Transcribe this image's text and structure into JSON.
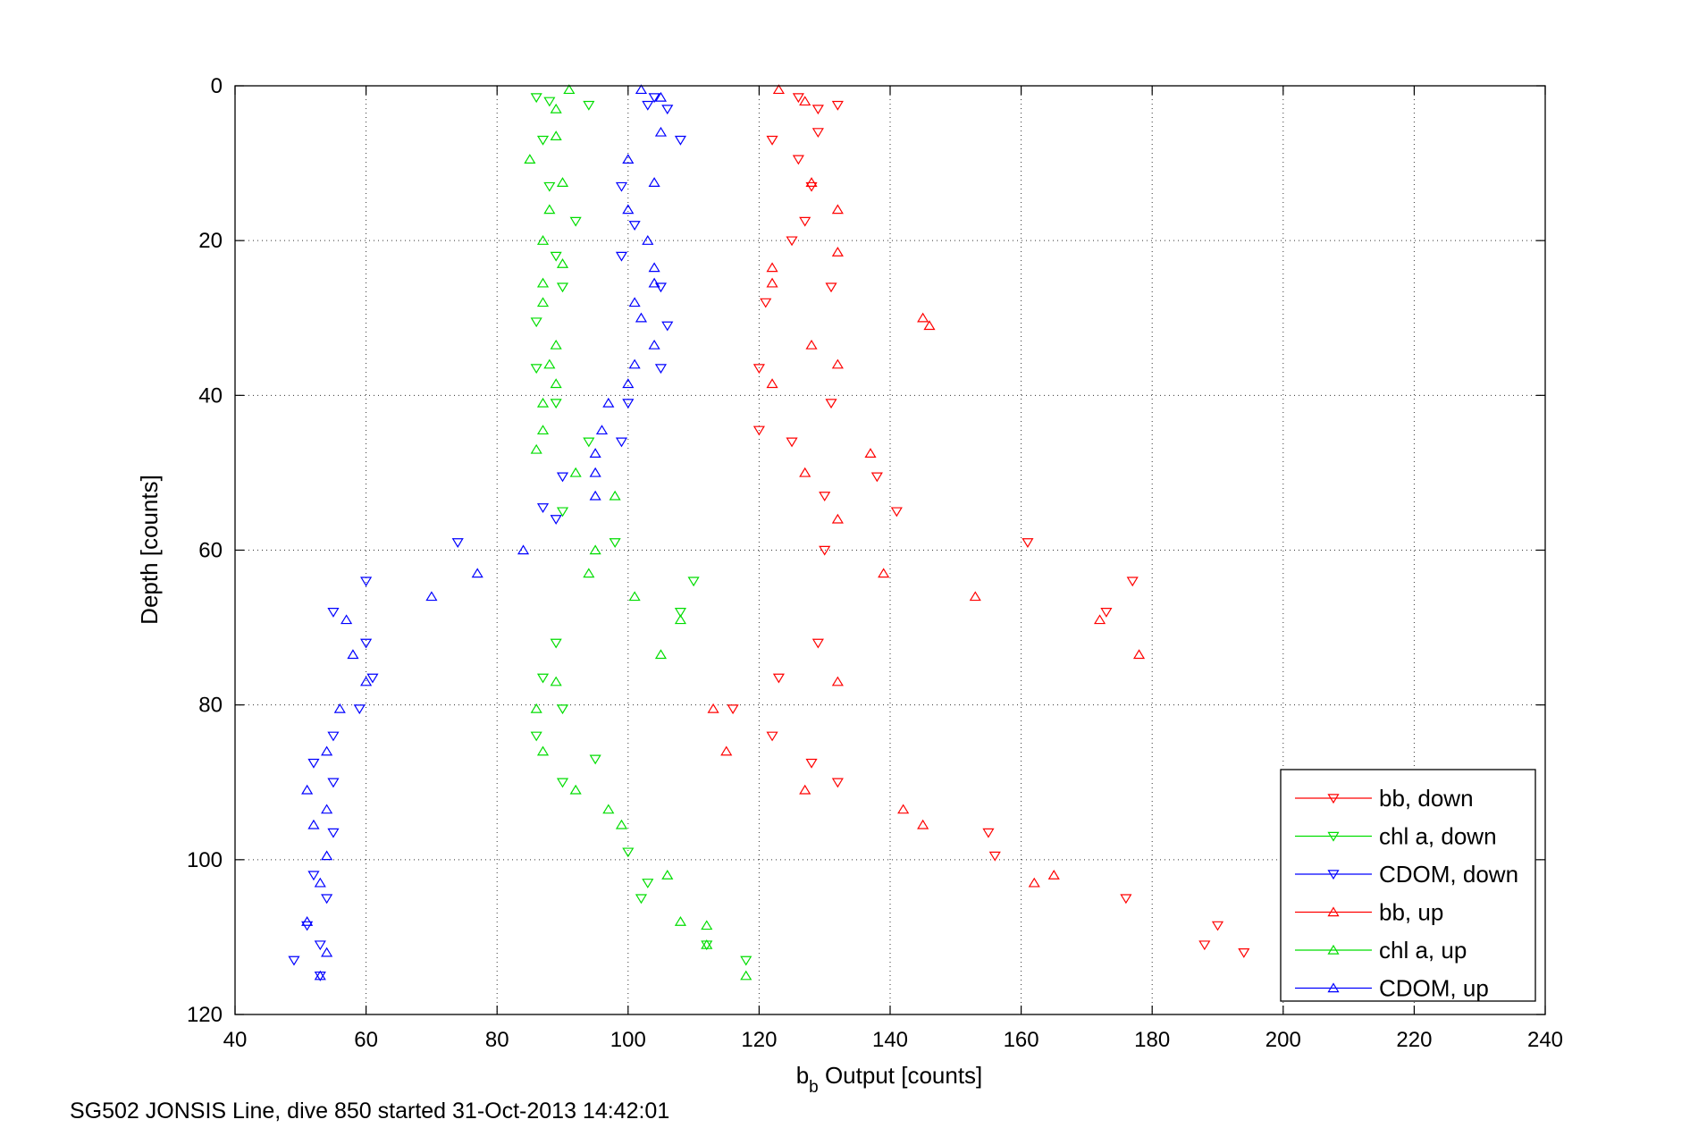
{
  "caption": "SG502 JONSIS Line, dive 850 started 31-Oct-2013 14:42:01",
  "chart_data": {
    "type": "scatter",
    "title": "",
    "xlabel_main": "b",
    "xlabel_sub": "b",
    "xlabel_rest": " Output [counts]",
    "ylabel": "Depth [counts]",
    "xlim": [
      40,
      240
    ],
    "ylim": [
      0,
      120
    ],
    "y_reversed": true,
    "grid": true,
    "grid_style": "dotted",
    "legend_position": "bottom-right",
    "xticks": [
      "40",
      "60",
      "80",
      "100",
      "120",
      "140",
      "160",
      "180",
      "200",
      "220",
      "240"
    ],
    "yticks": [
      "0",
      "20",
      "40",
      "60",
      "80",
      "100",
      "120"
    ],
    "series": [
      {
        "name": "bb, down",
        "color": "#ff0000",
        "marker": "triangle-down",
        "points": [
          [
            126,
            1.5
          ],
          [
            129,
            3
          ],
          [
            132,
            2.5
          ],
          [
            122,
            7
          ],
          [
            129,
            6
          ],
          [
            126,
            9.5
          ],
          [
            128,
            13
          ],
          [
            127,
            17.5
          ],
          [
            125,
            20
          ],
          [
            131,
            26
          ],
          [
            121,
            28
          ],
          [
            120,
            36.5
          ],
          [
            131,
            41
          ],
          [
            120,
            44.5
          ],
          [
            125,
            46
          ],
          [
            138,
            50.5
          ],
          [
            130,
            53
          ],
          [
            141,
            55
          ],
          [
            161,
            59
          ],
          [
            130,
            60
          ],
          [
            177,
            64
          ],
          [
            173,
            68
          ],
          [
            129,
            72
          ],
          [
            123,
            76.5
          ],
          [
            116,
            80.5
          ],
          [
            122,
            84
          ],
          [
            128,
            87.5
          ],
          [
            132,
            90
          ],
          [
            155,
            96.5
          ],
          [
            156,
            99.5
          ],
          [
            176,
            105
          ],
          [
            190,
            108.5
          ],
          [
            188,
            111
          ],
          [
            194,
            112
          ]
        ]
      },
      {
        "name": "chl a, down",
        "color": "#00dd00",
        "marker": "triangle-down",
        "points": [
          [
            86,
            1.5
          ],
          [
            88,
            2
          ],
          [
            94,
            2.5
          ],
          [
            87,
            7
          ],
          [
            88,
            13
          ],
          [
            92,
            17.5
          ],
          [
            89,
            22
          ],
          [
            90,
            26
          ],
          [
            86,
            30.5
          ],
          [
            86,
            36.5
          ],
          [
            89,
            41
          ],
          [
            94,
            46
          ],
          [
            90,
            55
          ],
          [
            98,
            59
          ],
          [
            110,
            64
          ],
          [
            108,
            68
          ],
          [
            89,
            72
          ],
          [
            87,
            76.5
          ],
          [
            90,
            80.5
          ],
          [
            86,
            84
          ],
          [
            90,
            90
          ],
          [
            100,
            99
          ],
          [
            103,
            103
          ],
          [
            102,
            105
          ],
          [
            112,
            111
          ],
          [
            118,
            113
          ],
          [
            95,
            87
          ]
        ]
      },
      {
        "name": "CDOM, down",
        "color": "#0000ff",
        "marker": "triangle-down",
        "points": [
          [
            103,
            2.5
          ],
          [
            104,
            1.5
          ],
          [
            106,
            3
          ],
          [
            108,
            7
          ],
          [
            99,
            13
          ],
          [
            101,
            18
          ],
          [
            99,
            22
          ],
          [
            105,
            26
          ],
          [
            106,
            31
          ],
          [
            105,
            36.5
          ],
          [
            100,
            41
          ],
          [
            99,
            46
          ],
          [
            90,
            50.5
          ],
          [
            89,
            56
          ],
          [
            87,
            54.5
          ],
          [
            74,
            59
          ],
          [
            60,
            64
          ],
          [
            55,
            68
          ],
          [
            60,
            72
          ],
          [
            61,
            76.5
          ],
          [
            59,
            80.5
          ],
          [
            55,
            84
          ],
          [
            52,
            87.5
          ],
          [
            55,
            90
          ],
          [
            55,
            96.5
          ],
          [
            52,
            102
          ],
          [
            51,
            108.5
          ],
          [
            53,
            111
          ],
          [
            49,
            113
          ],
          [
            53,
            115
          ],
          [
            54,
            105
          ]
        ]
      },
      {
        "name": "bb, up",
        "color": "#ff0000",
        "marker": "triangle-up",
        "points": [
          [
            123,
            0.5
          ],
          [
            127,
            2
          ],
          [
            128,
            12.5
          ],
          [
            132,
            16
          ],
          [
            132,
            21.5
          ],
          [
            122,
            23.5
          ],
          [
            122,
            25.5
          ],
          [
            145,
            30
          ],
          [
            146,
            31
          ],
          [
            128,
            33.5
          ],
          [
            132,
            36
          ],
          [
            122,
            38.5
          ],
          [
            137,
            47.5
          ],
          [
            127,
            50
          ],
          [
            132,
            56
          ],
          [
            139,
            63
          ],
          [
            153,
            66
          ],
          [
            172,
            69
          ],
          [
            178,
            73.5
          ],
          [
            132,
            77
          ],
          [
            113,
            80.5
          ],
          [
            115,
            86
          ],
          [
            127,
            91
          ],
          [
            142,
            93.5
          ],
          [
            145,
            95.5
          ],
          [
            165,
            102
          ],
          [
            162,
            103
          ]
        ]
      },
      {
        "name": "chl a, up",
        "color": "#00dd00",
        "marker": "triangle-up",
        "points": [
          [
            91,
            0.5
          ],
          [
            89,
            3
          ],
          [
            89,
            6.5
          ],
          [
            85,
            9.5
          ],
          [
            90,
            12.5
          ],
          [
            88,
            16
          ],
          [
            87,
            20
          ],
          [
            90,
            23
          ],
          [
            87,
            25.5
          ],
          [
            87,
            28
          ],
          [
            89,
            33.5
          ],
          [
            88,
            36
          ],
          [
            89,
            38.5
          ],
          [
            87,
            41
          ],
          [
            87,
            44.5
          ],
          [
            86,
            47
          ],
          [
            92,
            50
          ],
          [
            98,
            53
          ],
          [
            95,
            60
          ],
          [
            94,
            63
          ],
          [
            101,
            66
          ],
          [
            108,
            69
          ],
          [
            105,
            73.5
          ],
          [
            89,
            77
          ],
          [
            86,
            80.5
          ],
          [
            87,
            86
          ],
          [
            92,
            91
          ],
          [
            97,
            93.5
          ],
          [
            99,
            95.5
          ],
          [
            106,
            102
          ],
          [
            108,
            108
          ],
          [
            112,
            108.5
          ],
          [
            112,
            111
          ],
          [
            118,
            115
          ]
        ]
      },
      {
        "name": "CDOM, up",
        "color": "#0000ff",
        "marker": "triangle-up",
        "points": [
          [
            102,
            0.5
          ],
          [
            105,
            1.5
          ],
          [
            105,
            6
          ],
          [
            100,
            9.5
          ],
          [
            104,
            12.5
          ],
          [
            100,
            16
          ],
          [
            103,
            20
          ],
          [
            104,
            23.5
          ],
          [
            104,
            25.5
          ],
          [
            101,
            28
          ],
          [
            102,
            30
          ],
          [
            104,
            33.5
          ],
          [
            101,
            36
          ],
          [
            100,
            38.5
          ],
          [
            97,
            41
          ],
          [
            96,
            44.5
          ],
          [
            95,
            47.5
          ],
          [
            95,
            50
          ],
          [
            95,
            53
          ],
          [
            84,
            60
          ],
          [
            77,
            63
          ],
          [
            70,
            66
          ],
          [
            57,
            69
          ],
          [
            58,
            73.5
          ],
          [
            60,
            77
          ],
          [
            56,
            80.5
          ],
          [
            54,
            86
          ],
          [
            51,
            91
          ],
          [
            54,
            93.5
          ],
          [
            52,
            95.5
          ],
          [
            54,
            99.5
          ],
          [
            53,
            103
          ],
          [
            51,
            108
          ],
          [
            54,
            112
          ],
          [
            53,
            115
          ]
        ]
      }
    ]
  }
}
